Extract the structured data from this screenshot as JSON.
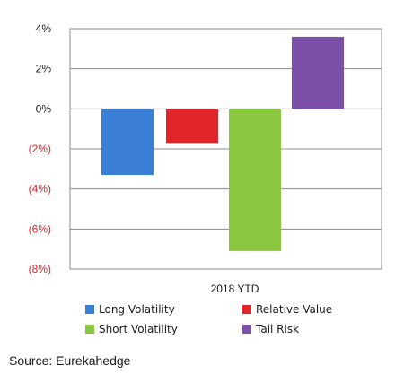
{
  "chart_data": {
    "type": "bar",
    "categories": [
      "2018 YTD"
    ],
    "series": [
      {
        "name": "Long Volatility",
        "values": [
          -3.3
        ],
        "color": "#3a7fd5"
      },
      {
        "name": "Relative Value",
        "values": [
          -1.7
        ],
        "color": "#e0262a"
      },
      {
        "name": "Short Volatility",
        "values": [
          -7.1
        ],
        "color": "#8bc63f"
      },
      {
        "name": "Tail Risk",
        "values": [
          3.6
        ],
        "color": "#7c4fa8"
      }
    ],
    "title": "",
    "xlabel": "",
    "ylabel": "",
    "ylim": [
      -8,
      4
    ],
    "y_ticks": [
      {
        "value": 4,
        "label": "4%"
      },
      {
        "value": 2,
        "label": "2%"
      },
      {
        "value": 0,
        "label": "0%"
      },
      {
        "value": -2,
        "label": "(2%)"
      },
      {
        "value": -4,
        "label": "(4%)"
      },
      {
        "value": -6,
        "label": "(6%)"
      },
      {
        "value": -8,
        "label": "(8%)"
      }
    ],
    "negative_label_color": "#d7262a",
    "grid": true,
    "legend_position": "bottom"
  },
  "source": "Source: Eurekahedge"
}
